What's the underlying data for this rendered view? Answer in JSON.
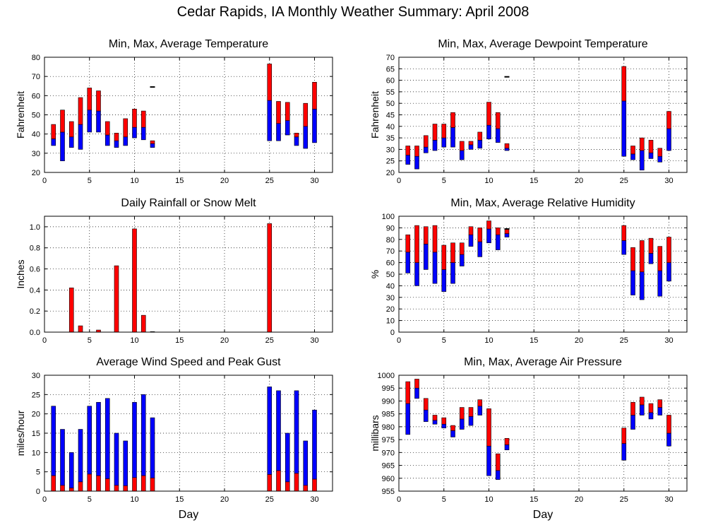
{
  "title": "Cedar Rapids, IA Monthly Weather Summary: April 2008",
  "colors": {
    "low": "#0000ff",
    "high": "#ff0000",
    "mark": "#000000"
  },
  "chart_data": [
    {
      "id": "temp",
      "type": "range-bar",
      "title": "Min, Max, Average Temperature",
      "xlabel": "",
      "ylabel": "Fahrenheit",
      "xlim": [
        0,
        32
      ],
      "ylim": [
        20,
        80
      ],
      "xticks": [
        0,
        5,
        10,
        15,
        20,
        25,
        30
      ],
      "yticks": [
        20,
        30,
        40,
        50,
        60,
        70,
        80
      ],
      "grid": true,
      "days": [
        1,
        2,
        3,
        4,
        5,
        6,
        7,
        8,
        9,
        10,
        11,
        12,
        25,
        26,
        27,
        28,
        29,
        30
      ],
      "min": [
        34,
        26,
        33,
        32,
        41,
        41,
        34,
        33,
        34,
        38,
        37,
        33,
        36.5,
        36.5,
        39.5,
        34,
        32.5,
        35.5
      ],
      "avg": [
        37.5,
        41,
        38.5,
        45,
        52.5,
        52,
        39.5,
        36.5,
        38.5,
        43.5,
        43.5,
        35,
        57.5,
        45.5,
        47,
        38.5,
        44,
        53
      ],
      "max": [
        45,
        52.5,
        46.5,
        59,
        64,
        62.5,
        46.5,
        40.5,
        48,
        53,
        52,
        36.5,
        76.5,
        57,
        56.5,
        40.5,
        56,
        67
      ],
      "marker": {
        "day": 12,
        "value": 64.5
      }
    },
    {
      "id": "dewpoint",
      "type": "range-bar",
      "title": "Min, Max, Average Dewpoint Temperature",
      "xlabel": "",
      "ylabel": "Fahrenheit",
      "xlim": [
        0,
        32
      ],
      "ylim": [
        20,
        70
      ],
      "xticks": [
        0,
        5,
        10,
        15,
        20,
        25,
        30
      ],
      "yticks": [
        20,
        25,
        30,
        35,
        40,
        45,
        50,
        55,
        60,
        65,
        70
      ],
      "grid": true,
      "days": [
        1,
        2,
        3,
        4,
        5,
        6,
        7,
        8,
        9,
        10,
        11,
        12,
        25,
        26,
        27,
        28,
        29,
        30
      ],
      "min": [
        23.5,
        21.5,
        28.5,
        29.5,
        31,
        31,
        25.5,
        30,
        30.5,
        34.5,
        33,
        29.5,
        27,
        25.5,
        21,
        26,
        24.5,
        29.5
      ],
      "avg": [
        27.5,
        27,
        31,
        34,
        35,
        39.5,
        29.5,
        32,
        34,
        40.5,
        39,
        30.5,
        51,
        28,
        29.5,
        28.5,
        27,
        39
      ],
      "max": [
        31.5,
        31.5,
        36,
        41,
        41,
        46,
        33.5,
        33.5,
        37.5,
        50.5,
        46,
        32.5,
        66,
        31.5,
        35,
        34,
        30.5,
        46.5
      ],
      "marker": {
        "day": 12,
        "value": 61.5
      }
    },
    {
      "id": "rain",
      "type": "bar",
      "title": "Daily Rainfall or Snow Melt",
      "xlabel": "",
      "ylabel": "Inches",
      "xlim": [
        0,
        32
      ],
      "ylim": [
        0,
        1.1
      ],
      "xticks": [
        0,
        5,
        10,
        15,
        20,
        25,
        30
      ],
      "yticks": [
        0.0,
        0.2,
        0.4,
        0.6,
        0.8,
        1.0
      ],
      "ytick_labels": [
        "0.0",
        "0.2",
        "0.4",
        "0.6",
        "0.8",
        "1.0"
      ],
      "grid": true,
      "days": [
        3,
        4,
        6,
        8,
        10,
        11,
        12,
        25
      ],
      "values": [
        0.42,
        0.06,
        0.02,
        0.63,
        0.98,
        0.16,
        0.005,
        1.03
      ]
    },
    {
      "id": "humidity",
      "type": "range-bar",
      "title": "Min, Max, Average Relative Humidity",
      "xlabel": "",
      "ylabel": "%",
      "xlim": [
        0,
        32
      ],
      "ylim": [
        0,
        100
      ],
      "xticks": [
        0,
        5,
        10,
        15,
        20,
        25,
        30
      ],
      "yticks": [
        0,
        10,
        20,
        30,
        40,
        50,
        60,
        70,
        80,
        90,
        100
      ],
      "grid": true,
      "days": [
        1,
        2,
        3,
        4,
        5,
        6,
        7,
        8,
        9,
        10,
        11,
        12,
        25,
        26,
        27,
        28,
        29,
        30
      ],
      "min": [
        51,
        40,
        54,
        42,
        35,
        42,
        57,
        74,
        65,
        77,
        71,
        82,
        67,
        32,
        28,
        59,
        31,
        44
      ],
      "avg": [
        69,
        60,
        76,
        69,
        54,
        60,
        67,
        84,
        78,
        89,
        84,
        85,
        79,
        53,
        52,
        68,
        53,
        60
      ],
      "max": [
        84,
        92,
        91,
        92,
        75,
        77,
        77,
        91,
        90,
        96,
        90,
        89,
        92,
        73,
        79,
        81,
        74,
        82
      ],
      "marker": {
        "day": 12,
        "value": 89
      }
    },
    {
      "id": "wind",
      "type": "stacked-bar",
      "title": "Average Wind Speed and Peak Gust",
      "xlabel": "Day",
      "ylabel": "miles/hour",
      "xlim": [
        0,
        32
      ],
      "ylim": [
        0,
        30
      ],
      "xticks": [
        0,
        5,
        10,
        15,
        20,
        25,
        30
      ],
      "yticks": [
        0,
        5,
        10,
        15,
        20,
        25,
        30
      ],
      "grid": true,
      "days": [
        1,
        2,
        3,
        4,
        5,
        6,
        7,
        8,
        9,
        10,
        11,
        12,
        25,
        26,
        27,
        28,
        29,
        30
      ],
      "avg": [
        4,
        1.5,
        0.8,
        2.4,
        4.4,
        4,
        3.2,
        1.5,
        1.4,
        3.5,
        4,
        3.4,
        4.3,
        5.3,
        2.4,
        4.6,
        1.5,
        3.1
      ],
      "gust": [
        22,
        16,
        10,
        16,
        22,
        23,
        24,
        15,
        13,
        23,
        25,
        19,
        27,
        26,
        15,
        26,
        13,
        21
      ]
    },
    {
      "id": "pressure",
      "type": "range-bar",
      "title": "Min, Max, Average Air Pressure",
      "xlabel": "Day",
      "ylabel": "millibars",
      "xlim": [
        0,
        32
      ],
      "ylim": [
        955,
        1000
      ],
      "xticks": [
        0,
        5,
        10,
        15,
        20,
        25,
        30
      ],
      "yticks": [
        955,
        960,
        965,
        970,
        975,
        980,
        985,
        990,
        995,
        1000
      ],
      "grid": true,
      "days": [
        1,
        2,
        3,
        4,
        5,
        6,
        7,
        8,
        9,
        10,
        11,
        12,
        25,
        26,
        27,
        28,
        29,
        30
      ],
      "min": [
        977,
        991,
        982,
        981,
        979.5,
        976,
        979,
        980.5,
        984.5,
        961,
        959.5,
        971,
        967,
        979,
        984.5,
        983,
        984.5,
        972.5
      ],
      "avg": [
        989,
        995,
        986.5,
        982.5,
        981,
        978.5,
        983,
        984,
        988,
        972.5,
        963,
        973,
        973.5,
        984.5,
        988.5,
        985.5,
        987.5,
        977.5
      ],
      "max": [
        997.5,
        998.5,
        991,
        984.5,
        983.5,
        980.5,
        987.5,
        987.5,
        990.5,
        987,
        969.5,
        975.5,
        979.5,
        989.5,
        991.5,
        989,
        990.5,
        984.5
      ]
    }
  ]
}
